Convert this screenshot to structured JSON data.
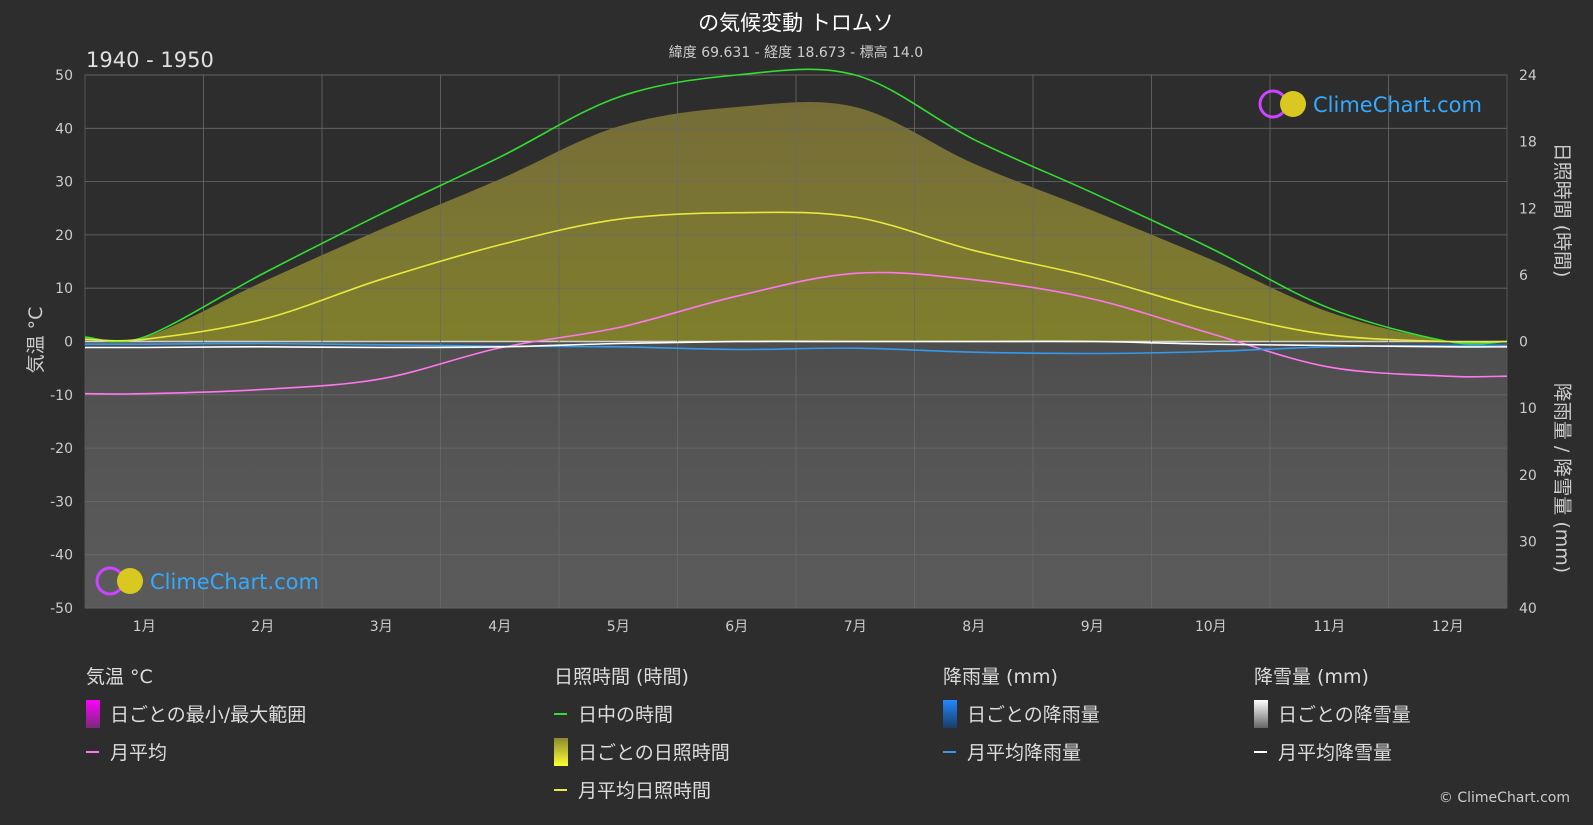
{
  "title": "の気候変動 トロムソ",
  "subtitle": "緯度 69.631 - 経度 18.673 - 標高 14.0",
  "period": "1940 - 1950",
  "brand": "ClimeChart.com",
  "copyright": "© ClimeChart.com",
  "chart_data": {
    "type": "area",
    "months": [
      "1月",
      "2月",
      "3月",
      "4月",
      "5月",
      "6月",
      "7月",
      "8月",
      "9月",
      "10月",
      "11月",
      "12月"
    ],
    "left_axis": {
      "label": "気温 °C",
      "ticks": [
        50,
        40,
        30,
        20,
        10,
        0,
        -10,
        -20,
        -30,
        -40,
        -50
      ],
      "range": [
        -50,
        50
      ]
    },
    "right_axis_top": {
      "label": "日照時間 (時間)",
      "ticks": [
        24,
        18,
        12,
        6,
        0
      ],
      "range": [
        0,
        24
      ]
    },
    "right_axis_bottom": {
      "label": "降雨量 / 降雪量 (mm)",
      "ticks": [
        10,
        20,
        30,
        40
      ],
      "range": [
        0,
        40
      ]
    },
    "series": [
      {
        "name": "日中の時間",
        "unit": "時間",
        "color": "#33dd33",
        "values": [
          0.4,
          6.1,
          11.5,
          16.6,
          22.0,
          24.0,
          24.0,
          18.2,
          13.4,
          8.4,
          3.0,
          0.0
        ]
      },
      {
        "name": "月平均日照時間",
        "unit": "時間",
        "color": "#e8e840",
        "values": [
          0.2,
          2.0,
          5.6,
          8.7,
          11.0,
          11.6,
          11.2,
          8.2,
          5.8,
          2.8,
          0.6,
          0.0
        ]
      },
      {
        "name": "月平均",
        "unit": "°C",
        "color": "#ff77ee",
        "values": [
          -9.8,
          -9.0,
          -7.0,
          -1.2,
          2.6,
          8.5,
          12.8,
          11.6,
          8.0,
          1.5,
          -4.8,
          -6.5
        ]
      },
      {
        "name": "月平均降雨量",
        "unit": "mm",
        "color": "#3399ee",
        "values": [
          0.4,
          0.3,
          0.5,
          0.7,
          0.8,
          1.2,
          1.0,
          1.6,
          1.8,
          1.5,
          0.8,
          0.6
        ]
      },
      {
        "name": "月平均降雪量",
        "unit": "mm",
        "color": "#ffffff",
        "values": [
          0.9,
          0.8,
          0.9,
          0.8,
          0.3,
          0.0,
          0.0,
          0.0,
          0.0,
          0.4,
          0.6,
          0.8
        ]
      }
    ],
    "legend_groups": [
      {
        "title": "気温 °C",
        "items": [
          {
            "label": "日ごとの最小/最大範囲",
            "kind": "swatch-temp"
          },
          {
            "label": "月平均",
            "kind": "line",
            "color": "#ff77ee"
          }
        ]
      },
      {
        "title": "日照時間 (時間)",
        "items": [
          {
            "label": "日中の時間",
            "kind": "line",
            "color": "#33dd33"
          },
          {
            "label": "日ごとの日照時間",
            "kind": "swatch-sun"
          },
          {
            "label": "月平均日照時間",
            "kind": "line",
            "color": "#e8e840"
          }
        ]
      },
      {
        "title": "降雨量 (mm)",
        "items": [
          {
            "label": "日ごとの降雨量",
            "kind": "swatch-rain"
          },
          {
            "label": "月平均降雨量",
            "kind": "line",
            "color": "#3399ee"
          }
        ]
      },
      {
        "title": "降雪量 (mm)",
        "items": [
          {
            "label": "日ごとの降雪量",
            "kind": "swatch-snow"
          },
          {
            "label": "月平均降雪量",
            "kind": "line",
            "color": "#ffffff"
          }
        ]
      }
    ]
  }
}
